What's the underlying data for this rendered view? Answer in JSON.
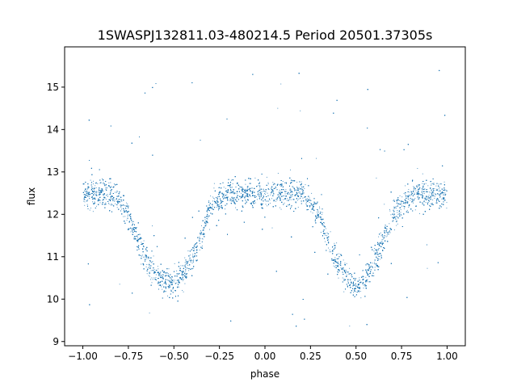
{
  "chart_data": {
    "type": "scatter",
    "title": "1SWASPJ132811.03-480214.5 Period 20501.37305s",
    "xlabel": "phase",
    "ylabel": "flux",
    "xlim": [
      -1.1,
      1.1
    ],
    "ylim": [
      8.9,
      15.95
    ],
    "x_ticks": [
      -1.0,
      -0.75,
      -0.5,
      -0.25,
      0.0,
      0.25,
      0.5,
      0.75,
      1.0
    ],
    "x_tick_labels": [
      "−1.00",
      "−0.75",
      "−0.50",
      "−0.25",
      "0.00",
      "0.25",
      "0.50",
      "0.75",
      "1.00"
    ],
    "y_ticks": [
      9,
      10,
      11,
      12,
      13,
      14,
      15
    ],
    "y_tick_labels": [
      "9",
      "10",
      "11",
      "12",
      "13",
      "14",
      "15"
    ],
    "grid": false,
    "legend": "none",
    "point_color": "#1f77b4",
    "series": [
      {
        "x": [
          -1.0,
          -0.9,
          -0.8,
          -0.7,
          -0.65,
          -0.6,
          -0.55,
          -0.5,
          -0.45,
          -0.4,
          -0.35,
          -0.3,
          -0.2,
          -0.1,
          0.0,
          0.1,
          0.2,
          0.3,
          0.35,
          0.4,
          0.45,
          0.5,
          0.55,
          0.6,
          0.65,
          0.7,
          0.8,
          0.9,
          1.0
        ],
        "y": [
          12.5,
          12.5,
          12.4,
          11.4,
          10.9,
          10.6,
          10.4,
          10.4,
          10.6,
          11.0,
          11.5,
          12.2,
          12.5,
          12.5,
          12.5,
          12.5,
          12.5,
          11.9,
          11.3,
          10.9,
          10.5,
          10.3,
          10.5,
          10.9,
          11.4,
          12.0,
          12.5,
          12.5,
          12.5
        ]
      }
    ]
  }
}
